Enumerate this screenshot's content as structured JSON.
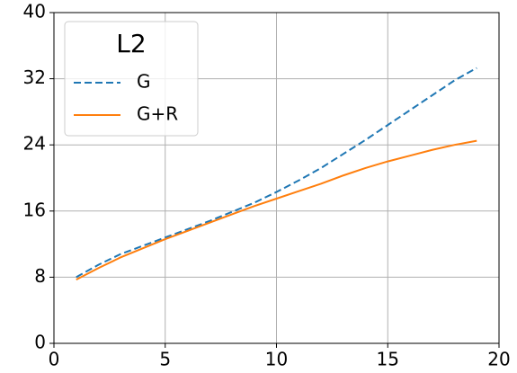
{
  "chart_data": {
    "type": "line",
    "x": [
      1,
      2,
      3,
      4,
      5,
      6,
      7,
      8,
      9,
      10,
      11,
      12,
      13,
      14,
      15,
      16,
      17,
      18,
      19
    ],
    "series": [
      {
        "name": "G",
        "color": "#1f77b4",
        "dash": true,
        "values": [
          8.0,
          9.5,
          10.8,
          11.8,
          12.8,
          13.8,
          14.8,
          15.9,
          17.0,
          18.3,
          19.7,
          21.2,
          22.9,
          24.6,
          26.4,
          28.2,
          30.0,
          31.8,
          33.3
        ]
      },
      {
        "name": "G+R",
        "color": "#ff7f0e",
        "dash": false,
        "values": [
          7.7,
          9.1,
          10.4,
          11.5,
          12.6,
          13.6,
          14.6,
          15.6,
          16.6,
          17.5,
          18.4,
          19.3,
          20.3,
          21.2,
          22.0,
          22.7,
          23.4,
          24.0,
          24.5
        ]
      }
    ],
    "legend_title": "L2",
    "legend": "upper left",
    "grid": true,
    "xlim": [
      0,
      20
    ],
    "xticks": [
      0,
      5,
      10,
      15,
      20
    ],
    "ylim": [
      0,
      40
    ],
    "yticks": [
      0,
      8,
      16,
      24,
      32,
      40
    ]
  }
}
